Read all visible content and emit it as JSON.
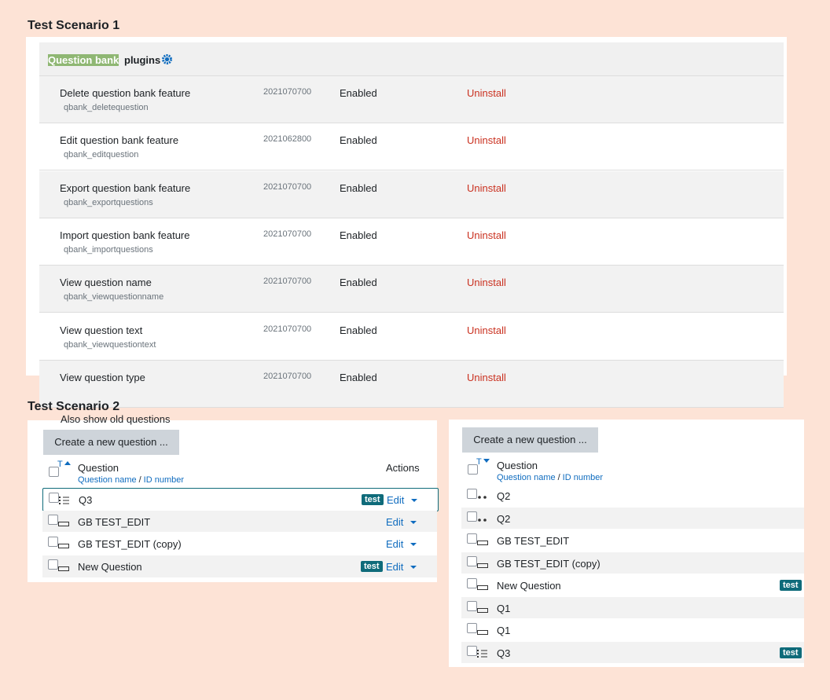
{
  "scenario1": {
    "title": "Test Scenario 1",
    "header": {
      "highlight": "Question bank",
      "text": "plugins"
    },
    "rows": [
      {
        "name": "Delete question bank feature",
        "component": "qbank_deletequestion",
        "version": "2021070700",
        "status": "Enabled",
        "action": "Uninstall"
      },
      {
        "name": "Edit question bank feature",
        "component": "qbank_editquestion",
        "version": "2021062800",
        "status": "Enabled",
        "action": "Uninstall"
      },
      {
        "name": "Export question bank feature",
        "component": "qbank_exportquestions",
        "version": "2021070700",
        "status": "Enabled",
        "action": "Uninstall"
      },
      {
        "name": "Import question bank feature",
        "component": "qbank_importquestions",
        "version": "2021070700",
        "status": "Enabled",
        "action": "Uninstall"
      },
      {
        "name": "View question name",
        "component": "qbank_viewquestionname",
        "version": "2021070700",
        "status": "Enabled",
        "action": "Uninstall"
      },
      {
        "name": "View question text",
        "component": "qbank_viewquestiontext",
        "version": "2021070700",
        "status": "Enabled",
        "action": "Uninstall"
      },
      {
        "name": "View question type",
        "version": "2021070700",
        "status": "Enabled",
        "action": "Uninstall"
      }
    ]
  },
  "scenario2": {
    "title": "Test Scenario 2",
    "left": {
      "cut_text": "Also show old questions",
      "button": "Create a new question ...",
      "sort": "T",
      "column": "Question",
      "subcolumns": [
        "Question name",
        "/",
        "ID number"
      ],
      "actions": "Actions",
      "rows": [
        {
          "name": "Q3",
          "tag": "test",
          "action": "Edit"
        },
        {
          "name": "GB TEST_EDIT",
          "action": "Edit"
        },
        {
          "name": "GB TEST_EDIT (copy)",
          "action": "Edit"
        },
        {
          "name": "New Question",
          "tag": "test",
          "action": "Edit"
        }
      ]
    },
    "right": {
      "button": "Create a new question ...",
      "sort": "T",
      "column": "Question",
      "subcolumns": [
        "Question name",
        "/",
        "ID number"
      ],
      "rows": [
        {
          "name": "Q2"
        },
        {
          "name": "Q2"
        },
        {
          "name": "GB TEST_EDIT"
        },
        {
          "name": "GB TEST_EDIT (copy)"
        },
        {
          "name": "New Question",
          "tag": "test"
        },
        {
          "name": "Q1"
        },
        {
          "name": "Q1"
        },
        {
          "name": "Q3",
          "tag": "test"
        }
      ]
    }
  }
}
